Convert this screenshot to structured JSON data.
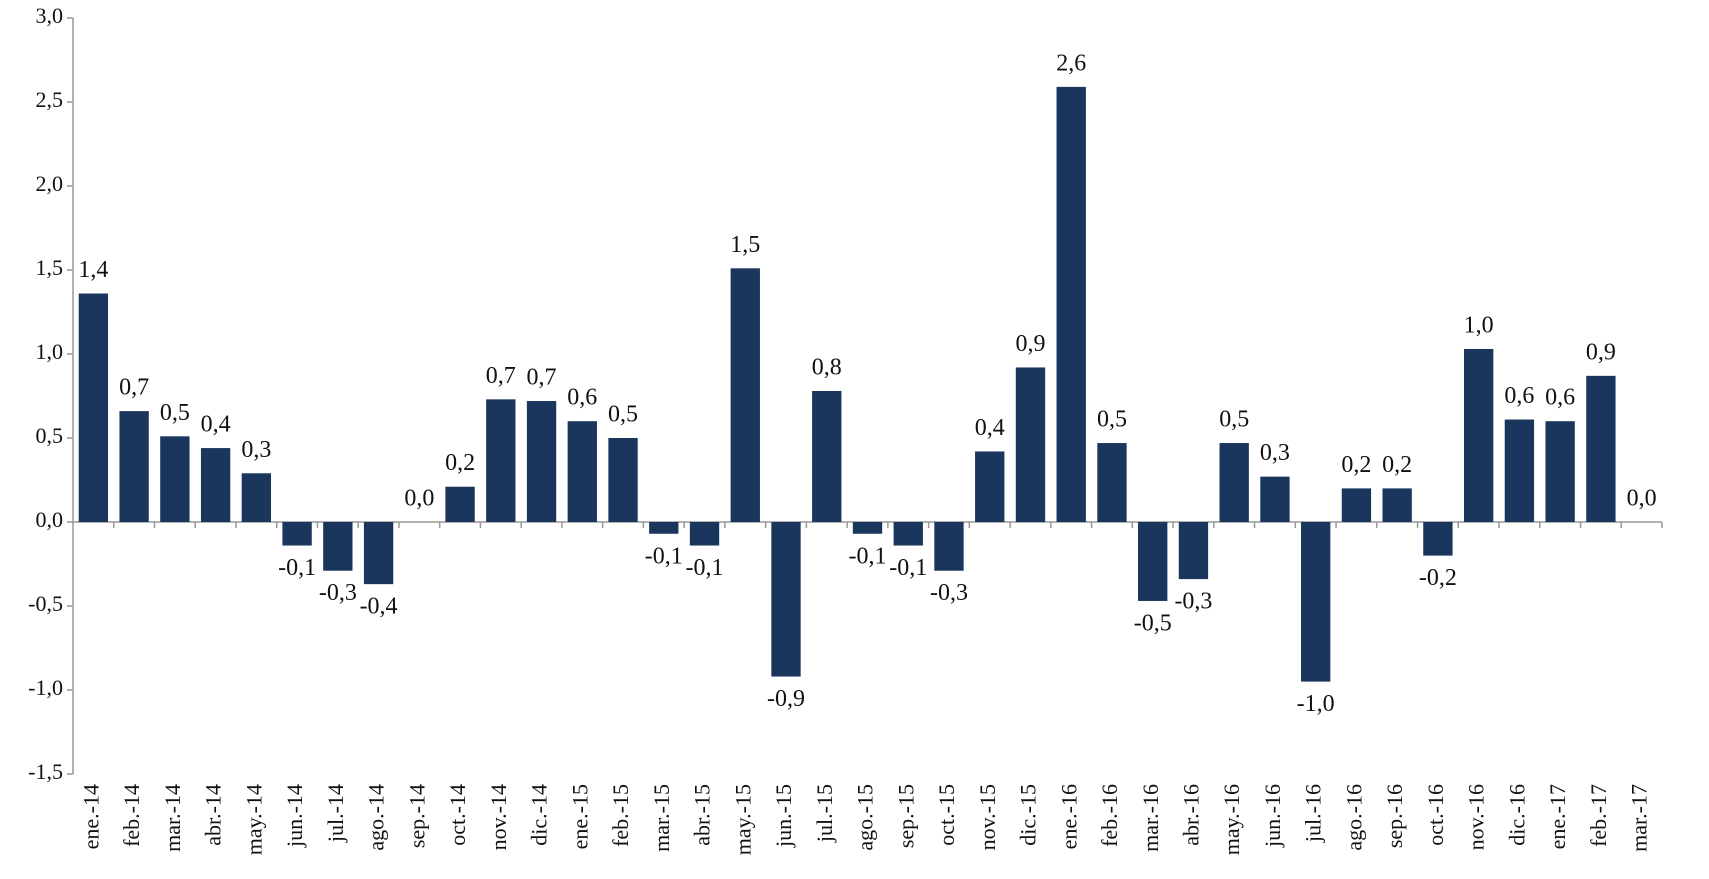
{
  "chart_data": {
    "type": "bar",
    "categories": [
      "ene.-14",
      "feb.-14",
      "mar.-14",
      "abr.-14",
      "may.-14",
      "jun.-14",
      "jul.-14",
      "ago.-14",
      "sep.-14",
      "oct.-14",
      "nov.-14",
      "dic.-14",
      "ene.-15",
      "feb.-15",
      "mar.-15",
      "abr.-15",
      "may.-15",
      "jun.-15",
      "jul.-15",
      "ago.-15",
      "sep.-15",
      "oct.-15",
      "nov.-15",
      "dic.-15",
      "ene.-16",
      "feb.-16",
      "mar.-16",
      "abr.-16",
      "may.-16",
      "jun.-16",
      "jul.-16",
      "ago.-16",
      "sep.-16",
      "oct.-16",
      "nov.-16",
      "dic.-16",
      "ene.-17",
      "feb.-17",
      "mar.-17"
    ],
    "values": [
      1.36,
      0.66,
      0.51,
      0.44,
      0.29,
      -0.14,
      -0.29,
      -0.37,
      0.0,
      0.21,
      0.73,
      0.72,
      0.6,
      0.5,
      -0.07,
      -0.14,
      1.51,
      -0.92,
      0.78,
      -0.07,
      -0.14,
      -0.29,
      0.42,
      0.92,
      2.59,
      0.47,
      -0.47,
      -0.34,
      0.47,
      0.27,
      -0.95,
      0.2,
      0.2,
      -0.2,
      1.03,
      0.61,
      0.6,
      0.87,
      0.0
    ],
    "value_labels": [
      "1,4",
      "0,7",
      "0,5",
      "0,4",
      "0,3",
      "-0,1",
      "-0,3",
      "-0,4",
      "0,0",
      "0,2",
      "0,7",
      "0,7",
      "0,6",
      "0,5",
      "-0,1",
      "-0,1",
      "1,5",
      "-0,9",
      "0,8",
      "-0,1",
      "-0,1",
      "-0,3",
      "0,4",
      "0,9",
      "2,6",
      "0,5",
      "-0,5",
      "-0,3",
      "0,5",
      "0,3",
      "-1,0",
      "0,2",
      "0,2",
      "-0,2",
      "1,0",
      "0,6",
      "0,6",
      "0,9",
      "0,0"
    ],
    "color": "#1b365d",
    "ylim": [
      -1.5,
      3.0
    ],
    "yticks": [
      {
        "value": -1.5,
        "label": "-1,5"
      },
      {
        "value": -1.0,
        "label": "-1,0"
      },
      {
        "value": -0.5,
        "label": "-0,5"
      },
      {
        "value": 0.0,
        "label": "0,0"
      },
      {
        "value": 0.5,
        "label": "0,5"
      },
      {
        "value": 1.0,
        "label": "1,0"
      },
      {
        "value": 1.5,
        "label": "1,5"
      },
      {
        "value": 2.0,
        "label": "2,0"
      },
      {
        "value": 2.5,
        "label": "2,5"
      },
      {
        "value": 3.0,
        "label": "3,0"
      }
    ],
    "grid": false
  }
}
